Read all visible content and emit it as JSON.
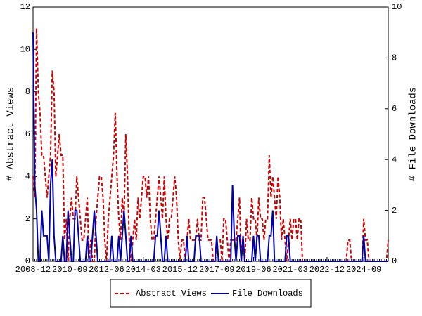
{
  "chart_data": {
    "type": "line",
    "x": [
      "2008-12",
      "2009-01",
      "2009-02",
      "2009-03",
      "2009-04",
      "2009-05",
      "2009-06",
      "2009-07",
      "2009-08",
      "2009-09",
      "2009-10",
      "2009-11",
      "2009-12",
      "2010-01",
      "2010-02",
      "2010-03",
      "2010-04",
      "2010-05",
      "2010-06",
      "2010-07",
      "2010-08",
      "2010-09",
      "2010-10",
      "2010-11",
      "2010-12",
      "2011-01",
      "2011-02",
      "2011-03",
      "2011-04",
      "2011-05",
      "2011-06",
      "2011-07",
      "2011-08",
      "2011-09",
      "2011-10",
      "2011-11",
      "2011-12",
      "2012-01",
      "2012-02",
      "2012-03",
      "2012-04",
      "2012-05",
      "2012-06",
      "2012-07",
      "2012-08",
      "2012-09",
      "2012-10",
      "2012-11",
      "2012-12",
      "2013-01",
      "2013-02",
      "2013-03",
      "2013-04",
      "2013-05",
      "2013-06",
      "2013-07",
      "2013-08",
      "2013-09",
      "2013-10",
      "2013-11",
      "2013-12",
      "2014-01",
      "2014-02",
      "2014-03",
      "2014-04",
      "2014-05",
      "2014-06",
      "2014-07",
      "2014-08",
      "2014-09",
      "2014-10",
      "2014-11",
      "2014-12",
      "2015-01",
      "2015-02",
      "2015-03",
      "2015-04",
      "2015-05",
      "2015-06",
      "2015-07",
      "2015-08",
      "2015-09",
      "2015-10",
      "2015-11",
      "2015-12",
      "2016-01",
      "2016-02",
      "2016-03",
      "2016-04",
      "2016-05",
      "2016-06",
      "2016-07",
      "2016-08",
      "2016-09",
      "2016-10",
      "2016-11",
      "2016-12",
      "2017-01",
      "2017-02",
      "2017-03",
      "2017-04",
      "2017-05",
      "2017-06",
      "2017-07",
      "2017-08",
      "2017-09",
      "2017-10",
      "2017-11",
      "2017-12",
      "2018-01",
      "2018-02",
      "2018-03",
      "2018-04",
      "2018-05",
      "2018-06",
      "2018-07",
      "2018-08",
      "2018-09",
      "2018-10",
      "2018-11",
      "2018-12",
      "2019-01",
      "2019-02",
      "2019-03",
      "2019-04",
      "2019-05",
      "2019-06",
      "2019-07",
      "2019-08",
      "2019-09",
      "2019-10",
      "2019-11",
      "2019-12",
      "2020-01",
      "2020-02",
      "2020-03",
      "2020-04",
      "2020-05",
      "2020-06",
      "2020-07",
      "2020-08",
      "2020-09",
      "2020-10",
      "2020-11",
      "2020-12",
      "2021-01",
      "2021-02",
      "2021-03",
      "2021-04",
      "2021-05",
      "2021-06",
      "2021-07",
      "2021-08",
      "2021-09",
      "2021-10",
      "2021-11",
      "2021-12",
      "2022-01",
      "2022-02",
      "2022-03",
      "2022-04",
      "2022-05",
      "2022-06",
      "2022-07",
      "2022-08",
      "2022-09",
      "2022-10",
      "2022-11",
      "2022-12",
      "2023-01",
      "2023-02",
      "2023-03",
      "2023-04",
      "2023-05",
      "2023-06",
      "2023-07",
      "2023-08",
      "2023-09",
      "2023-10",
      "2023-11",
      "2023-12",
      "2024-01",
      "2024-02",
      "2024-03",
      "2024-04",
      "2024-05",
      "2024-06",
      "2024-07",
      "2024-08",
      "2024-09",
      "2024-10",
      "2024-11",
      "2024-12",
      "2025-01",
      "2025-02",
      "2025-03",
      "2025-04",
      "2025-05",
      "2025-06",
      "2025-07",
      "2025-08",
      "2025-09",
      "2025-10",
      "2025-11"
    ],
    "xticks": [
      "2008-12",
      "2010-09",
      "2012-06",
      "2014-03",
      "2015-12",
      "2017-09",
      "2019-06",
      "2021-03",
      "2022-12",
      "2024-09"
    ],
    "ylabel": "# Abstract Views",
    "y2label": "# File Downloads",
    "ylim": [
      0,
      12
    ],
    "yticks": [
      0,
      2,
      4,
      6,
      8,
      10,
      12
    ],
    "y2lim": [
      0,
      10
    ],
    "y2ticks": [
      0,
      2,
      4,
      6,
      8,
      10
    ],
    "series": [
      {
        "name": "Abstract Views",
        "color": "#cc0000",
        "style": "dashed",
        "axis": "y",
        "values": [
          4,
          3,
          11,
          8,
          7,
          5,
          5,
          4,
          3,
          4,
          5,
          9,
          8,
          4,
          5,
          6,
          5,
          5,
          1,
          2,
          0,
          2,
          3,
          2,
          2,
          4,
          3,
          2,
          1,
          1,
          2,
          3,
          0,
          1,
          0,
          0,
          2,
          3,
          4,
          4,
          3,
          1,
          0,
          2,
          3,
          4,
          5,
          7,
          4,
          2,
          1,
          3,
          2,
          6,
          4,
          1,
          0,
          1,
          2,
          1,
          3,
          2,
          3,
          4,
          4,
          3,
          4,
          2,
          1,
          1,
          2,
          3,
          4,
          3,
          2,
          4,
          2,
          1,
          2,
          2,
          3,
          4,
          3,
          1,
          0,
          1,
          1,
          0,
          1,
          2,
          1,
          1,
          1,
          1,
          2,
          1,
          1,
          3,
          3,
          2,
          1,
          1,
          1,
          0,
          0,
          1,
          1,
          1,
          0,
          2,
          2,
          1,
          0,
          1,
          1,
          1,
          1,
          2,
          3,
          0,
          1,
          0,
          2,
          1,
          1,
          3,
          2,
          2,
          1,
          3,
          2,
          2,
          1,
          2,
          2,
          5,
          3,
          4,
          3,
          2,
          4,
          3,
          1,
          2,
          1,
          0,
          1,
          2,
          1,
          2,
          2,
          1,
          2,
          2,
          0,
          0,
          0,
          0,
          0,
          0,
          0,
          0,
          0,
          0,
          0,
          0,
          0,
          0,
          0,
          0,
          0,
          0,
          0,
          0,
          0,
          0,
          0,
          0,
          0,
          0,
          1,
          1,
          0,
          0,
          0,
          0,
          0,
          0,
          0,
          2,
          1,
          1,
          0,
          0,
          0,
          0,
          0,
          0,
          0,
          0,
          0,
          0,
          0,
          1
        ]
      },
      {
        "name": "File Downloads",
        "color": "#0000aa",
        "style": "solid",
        "axis": "y2",
        "values": [
          9,
          3,
          2,
          0,
          0,
          2,
          1,
          1,
          1,
          0,
          3,
          4,
          1,
          0,
          0,
          0,
          0,
          1,
          0,
          0,
          2,
          1,
          0,
          0,
          2,
          2,
          1,
          0,
          0,
          0,
          0,
          1,
          0,
          0,
          1,
          2,
          1,
          0,
          0,
          0,
          0,
          0,
          0,
          0,
          0,
          1,
          0,
          0,
          0,
          1,
          0,
          1,
          2,
          1,
          0,
          0,
          1,
          0,
          0,
          0,
          0,
          0,
          0,
          0,
          0,
          0,
          0,
          0,
          0,
          0,
          1,
          1,
          2,
          1,
          0,
          0,
          1,
          0,
          0,
          0,
          0,
          0,
          0,
          0,
          0,
          0,
          0,
          0,
          1,
          0,
          0,
          0,
          0,
          1,
          1,
          1,
          0,
          0,
          0,
          0,
          0,
          0,
          0,
          0,
          0,
          1,
          0,
          0,
          0,
          0,
          0,
          0,
          0,
          0,
          3,
          1,
          0,
          1,
          1,
          0,
          1,
          0,
          0,
          0,
          0,
          0,
          1,
          0,
          1,
          1,
          0,
          0,
          0,
          0,
          0,
          1,
          1,
          2,
          0,
          0,
          0,
          0,
          0,
          0,
          0,
          1,
          1,
          0,
          0,
          0,
          0,
          0,
          0,
          0,
          0,
          0,
          0,
          0,
          0,
          0,
          0,
          0,
          0,
          0,
          0,
          0,
          0,
          0,
          0,
          0,
          0,
          0,
          0,
          0,
          0,
          0,
          0,
          0,
          0,
          0,
          0,
          0,
          0,
          0,
          0,
          0,
          0,
          0,
          0,
          1,
          0,
          0,
          0,
          0,
          0,
          0,
          0,
          0,
          0,
          0,
          0,
          0,
          0,
          0
        ]
      }
    ],
    "legend": "bottom"
  }
}
